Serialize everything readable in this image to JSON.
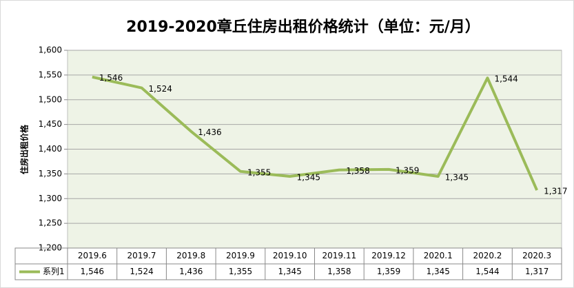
{
  "chart_data": {
    "type": "line",
    "title": "2019-2020章丘住房出租价格统计（单位：元/月）",
    "y_label": "住房出租价格",
    "categories": [
      "2019.6",
      "2019.7",
      "2019.8",
      "2019.9",
      "2019.10",
      "2019.11",
      "2019.12",
      "2020.1",
      "2020.2",
      "2020.3"
    ],
    "series": [
      {
        "name": "系列1",
        "color": "#9bbb59",
        "values": [
          1546,
          1524,
          1436,
          1355,
          1345,
          1358,
          1359,
          1345,
          1544,
          1317
        ],
        "value_labels": [
          "1,546",
          "1,524",
          "1,436",
          "1,355",
          "1,345",
          "1,358",
          "1,359",
          "1,345",
          "1,544",
          "1,317"
        ]
      }
    ],
    "ylim": [
      1200,
      1600
    ],
    "yticks": [
      {
        "value": 1200,
        "label": "1,200"
      },
      {
        "value": 1250,
        "label": "1,250"
      },
      {
        "value": 1300,
        "label": "1,300"
      },
      {
        "value": 1350,
        "label": "1,350"
      },
      {
        "value": 1400,
        "label": "1,400"
      },
      {
        "value": 1450,
        "label": "1,450"
      },
      {
        "value": 1500,
        "label": "1,500"
      },
      {
        "value": 1550,
        "label": "1,550"
      },
      {
        "value": 1600,
        "label": "1,600"
      }
    ],
    "grid": true
  }
}
